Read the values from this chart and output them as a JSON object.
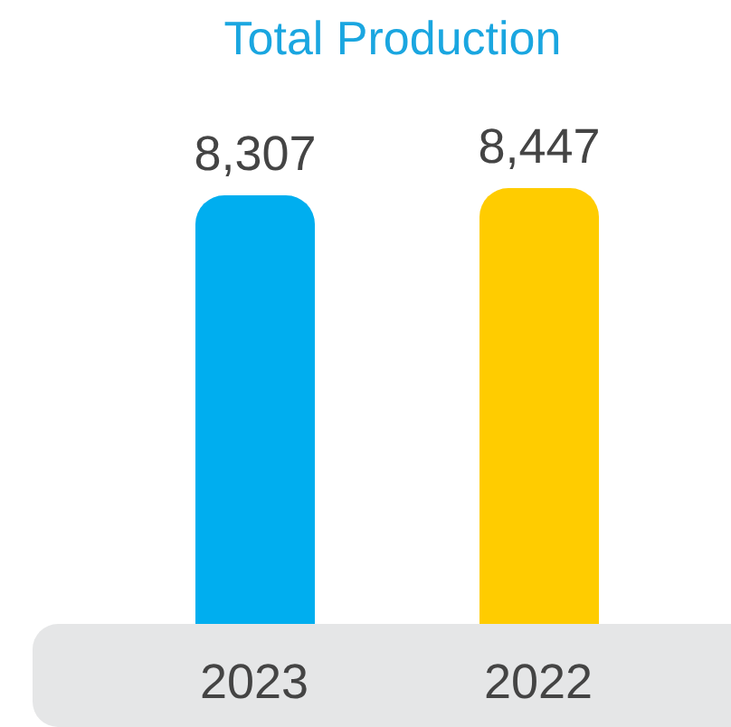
{
  "chart_data": {
    "type": "bar",
    "title": "Total Production",
    "categories": [
      "2023",
      "2022"
    ],
    "values": [
      8307,
      8447
    ],
    "colors": [
      "#00aeef",
      "#ffcc00"
    ],
    "value_labels": [
      "8,307",
      "8,447"
    ]
  }
}
